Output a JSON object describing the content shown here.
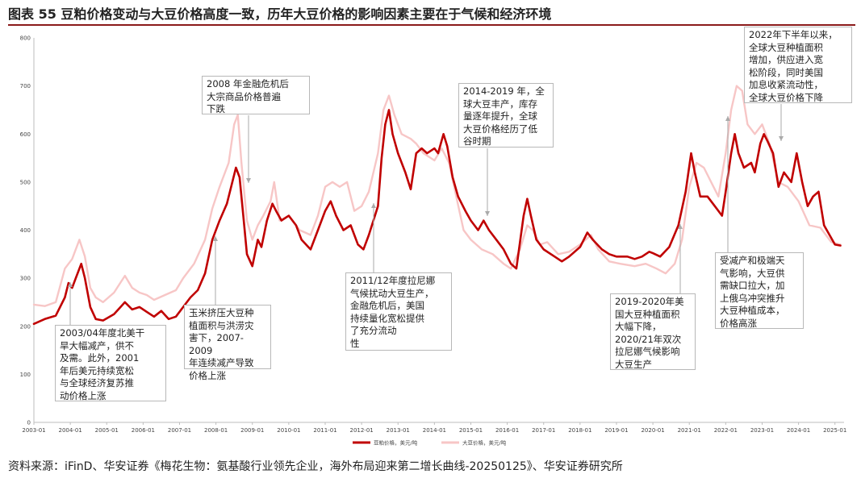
{
  "title": "图表 55 豆粕价格变动与大豆价格高度一致，历年大豆价格的影响因素主要在于气候和经济环境",
  "source": "资料来源：iFinD、华安证券《梅花生物：氨基酸行业领先企业，海外布局迎来第二增长曲线-20250125》、华安证券研究所",
  "colors": {
    "soymeal": "#c00000",
    "soybean": "#f7c6c6",
    "rule": "#8b1a1a",
    "arrow": "#aaaaaa"
  },
  "annotations": [
    {
      "id": "2003",
      "text": "2003/04年度北美干\n旱大幅减产，供不\n及需。此外，2001\n年后美元持续宽松\n与全球经济复苏推\n动价格上涨"
    },
    {
      "id": "2007",
      "text": "玉米挤压大豆种\n植面积与洪涝灾\n害下，2007-2009\n年连续减产导致\n价格上涨"
    },
    {
      "id": "2008",
      "text": "2008 年金融危机后\n大宗商品价格普遍\n下跌"
    },
    {
      "id": "2011",
      "text": "2011/12年度拉尼娜\n气候扰动大豆生产，\n金融危机后，美国\n持续量化宽松提供\n了充分流动\n性"
    },
    {
      "id": "2014",
      "text": "2014-2019 年，全\n球大豆丰产，库存\n量逐年提升，全球\n大豆价格经历了低\n谷时期"
    },
    {
      "id": "2019",
      "text": "2019-2020年美\n国大豆种植面积\n大幅下降，\n2020/21年双次\n拉尼娜气候影响\n大豆生产"
    },
    {
      "id": "2021",
      "text": "受减产和极端天\n气影响，大豆供\n需缺口拉大，加\n上俄乌冲突推升\n大豆种植成本，\n价格高涨"
    },
    {
      "id": "2022",
      "text": "2022年下半年以来，\n全球大豆种植面积\n增加，供应进入宽\n松阶段，同时美国\n加息收紧流动性，\n全球大豆价格下降"
    }
  ],
  "chart_data": {
    "type": "line",
    "x_unit": "year",
    "ylim": [
      0,
      800
    ],
    "yticks": [
      0,
      100,
      200,
      300,
      400,
      500,
      600,
      700,
      800
    ],
    "xlim": [
      2003.0,
      2025.25
    ],
    "xticks": [
      "2003-01",
      "2004-01",
      "2005-01",
      "2006-01",
      "2007-01",
      "2008-01",
      "2009-01",
      "2010-01",
      "2011-01",
      "2012-01",
      "2013-01",
      "2014-01",
      "2015-01",
      "2016-01",
      "2017-01",
      "2018-01",
      "2019-01",
      "2020-01",
      "2021-01",
      "2022-01",
      "2023-01",
      "2024-01",
      "2025-01"
    ],
    "legend_position": "bottom",
    "series": [
      {
        "name": "豆粕价格，美元/吨",
        "color": "#c00000",
        "points": [
          [
            2003.0,
            205
          ],
          [
            2003.3,
            215
          ],
          [
            2003.6,
            222
          ],
          [
            2003.85,
            260
          ],
          [
            2003.95,
            290
          ],
          [
            2004.05,
            280
          ],
          [
            2004.15,
            300
          ],
          [
            2004.3,
            330
          ],
          [
            2004.4,
            300
          ],
          [
            2004.55,
            240
          ],
          [
            2004.7,
            215
          ],
          [
            2004.9,
            212
          ],
          [
            2005.2,
            225
          ],
          [
            2005.5,
            250
          ],
          [
            2005.7,
            235
          ],
          [
            2005.9,
            240
          ],
          [
            2006.1,
            230
          ],
          [
            2006.3,
            220
          ],
          [
            2006.5,
            232
          ],
          [
            2006.7,
            215
          ],
          [
            2006.9,
            220
          ],
          [
            2007.1,
            240
          ],
          [
            2007.3,
            260
          ],
          [
            2007.5,
            275
          ],
          [
            2007.7,
            310
          ],
          [
            2007.9,
            380
          ],
          [
            2008.1,
            420
          ],
          [
            2008.3,
            455
          ],
          [
            2008.45,
            500
          ],
          [
            2008.55,
            530
          ],
          [
            2008.65,
            510
          ],
          [
            2008.75,
            430
          ],
          [
            2008.85,
            350
          ],
          [
            2009.0,
            325
          ],
          [
            2009.15,
            380
          ],
          [
            2009.25,
            365
          ],
          [
            2009.4,
            420
          ],
          [
            2009.55,
            455
          ],
          [
            2009.65,
            440
          ],
          [
            2009.8,
            420
          ],
          [
            2010.0,
            430
          ],
          [
            2010.2,
            410
          ],
          [
            2010.35,
            380
          ],
          [
            2010.6,
            360
          ],
          [
            2010.8,
            400
          ],
          [
            2011.0,
            440
          ],
          [
            2011.15,
            460
          ],
          [
            2011.3,
            430
          ],
          [
            2011.5,
            400
          ],
          [
            2011.7,
            410
          ],
          [
            2011.9,
            370
          ],
          [
            2012.05,
            360
          ],
          [
            2012.2,
            390
          ],
          [
            2012.45,
            450
          ],
          [
            2012.55,
            550
          ],
          [
            2012.65,
            620
          ],
          [
            2012.75,
            650
          ],
          [
            2012.85,
            600
          ],
          [
            2013.0,
            560
          ],
          [
            2013.2,
            520
          ],
          [
            2013.35,
            485
          ],
          [
            2013.5,
            560
          ],
          [
            2013.65,
            570
          ],
          [
            2013.8,
            560
          ],
          [
            2014.0,
            570
          ],
          [
            2014.1,
            560
          ],
          [
            2014.25,
            600
          ],
          [
            2014.35,
            575
          ],
          [
            2014.5,
            510
          ],
          [
            2014.65,
            470
          ],
          [
            2014.85,
            440
          ],
          [
            2015.0,
            420
          ],
          [
            2015.2,
            400
          ],
          [
            2015.35,
            420
          ],
          [
            2015.5,
            400
          ],
          [
            2015.7,
            380
          ],
          [
            2015.9,
            360
          ],
          [
            2016.1,
            330
          ],
          [
            2016.25,
            320
          ],
          [
            2016.45,
            430
          ],
          [
            2016.55,
            465
          ],
          [
            2016.65,
            430
          ],
          [
            2016.8,
            380
          ],
          [
            2017.0,
            360
          ],
          [
            2017.3,
            345
          ],
          [
            2017.5,
            335
          ],
          [
            2017.7,
            345
          ],
          [
            2018.0,
            365
          ],
          [
            2018.2,
            395
          ],
          [
            2018.35,
            380
          ],
          [
            2018.6,
            360
          ],
          [
            2018.8,
            350
          ],
          [
            2019.0,
            345
          ],
          [
            2019.3,
            345
          ],
          [
            2019.5,
            340
          ],
          [
            2019.7,
            345
          ],
          [
            2019.9,
            355
          ],
          [
            2020.0,
            352
          ],
          [
            2020.2,
            345
          ],
          [
            2020.45,
            365
          ],
          [
            2020.7,
            410
          ],
          [
            2020.9,
            480
          ],
          [
            2021.05,
            560
          ],
          [
            2021.15,
            520
          ],
          [
            2021.3,
            470
          ],
          [
            2021.5,
            470
          ],
          [
            2021.7,
            450
          ],
          [
            2021.9,
            430
          ],
          [
            2022.0,
            480
          ],
          [
            2022.15,
            560
          ],
          [
            2022.25,
            600
          ],
          [
            2022.35,
            560
          ],
          [
            2022.5,
            530
          ],
          [
            2022.7,
            540
          ],
          [
            2022.8,
            520
          ],
          [
            2022.95,
            580
          ],
          [
            2023.05,
            600
          ],
          [
            2023.15,
            585
          ],
          [
            2023.3,
            560
          ],
          [
            2023.45,
            490
          ],
          [
            2023.6,
            520
          ],
          [
            2023.8,
            500
          ],
          [
            2023.95,
            560
          ],
          [
            2024.1,
            500
          ],
          [
            2024.25,
            450
          ],
          [
            2024.4,
            470
          ],
          [
            2024.55,
            480
          ],
          [
            2024.7,
            410
          ],
          [
            2024.85,
            390
          ],
          [
            2025.0,
            370
          ],
          [
            2025.15,
            368
          ]
        ]
      },
      {
        "name": "大豆价格，美元/吨",
        "color": "#f7c6c6",
        "points": [
          [
            2003.0,
            245
          ],
          [
            2003.3,
            242
          ],
          [
            2003.6,
            250
          ],
          [
            2003.85,
            320
          ],
          [
            2004.05,
            340
          ],
          [
            2004.25,
            380
          ],
          [
            2004.4,
            345
          ],
          [
            2004.55,
            280
          ],
          [
            2004.7,
            260
          ],
          [
            2004.9,
            250
          ],
          [
            2005.2,
            270
          ],
          [
            2005.5,
            305
          ],
          [
            2005.7,
            280
          ],
          [
            2005.9,
            270
          ],
          [
            2006.1,
            265
          ],
          [
            2006.3,
            255
          ],
          [
            2006.6,
            265
          ],
          [
            2006.9,
            275
          ],
          [
            2007.1,
            300
          ],
          [
            2007.4,
            330
          ],
          [
            2007.7,
            380
          ],
          [
            2007.9,
            445
          ],
          [
            2008.1,
            490
          ],
          [
            2008.35,
            540
          ],
          [
            2008.5,
            620
          ],
          [
            2008.6,
            640
          ],
          [
            2008.7,
            540
          ],
          [
            2008.85,
            420
          ],
          [
            2009.0,
            380
          ],
          [
            2009.15,
            410
          ],
          [
            2009.3,
            430
          ],
          [
            2009.5,
            460
          ],
          [
            2009.6,
            500
          ],
          [
            2009.75,
            420
          ],
          [
            2010.0,
            430
          ],
          [
            2010.3,
            400
          ],
          [
            2010.6,
            390
          ],
          [
            2010.8,
            430
          ],
          [
            2011.0,
            490
          ],
          [
            2011.2,
            500
          ],
          [
            2011.4,
            490
          ],
          [
            2011.6,
            500
          ],
          [
            2011.8,
            440
          ],
          [
            2012.0,
            450
          ],
          [
            2012.2,
            480
          ],
          [
            2012.45,
            560
          ],
          [
            2012.6,
            650
          ],
          [
            2012.75,
            680
          ],
          [
            2012.9,
            640
          ],
          [
            2013.1,
            600
          ],
          [
            2013.35,
            590
          ],
          [
            2013.5,
            580
          ],
          [
            2013.7,
            560
          ],
          [
            2014.0,
            545
          ],
          [
            2014.2,
            570
          ],
          [
            2014.4,
            540
          ],
          [
            2014.6,
            470
          ],
          [
            2014.8,
            400
          ],
          [
            2015.0,
            380
          ],
          [
            2015.3,
            360
          ],
          [
            2015.6,
            350
          ],
          [
            2015.9,
            330
          ],
          [
            2016.1,
            320
          ],
          [
            2016.35,
            360
          ],
          [
            2016.55,
            410
          ],
          [
            2016.7,
            400
          ],
          [
            2016.9,
            370
          ],
          [
            2017.1,
            375
          ],
          [
            2017.4,
            350
          ],
          [
            2017.7,
            355
          ],
          [
            2018.0,
            370
          ],
          [
            2018.3,
            390
          ],
          [
            2018.5,
            360
          ],
          [
            2018.8,
            335
          ],
          [
            2019.1,
            330
          ],
          [
            2019.5,
            325
          ],
          [
            2019.8,
            330
          ],
          [
            2020.1,
            320
          ],
          [
            2020.35,
            310
          ],
          [
            2020.6,
            330
          ],
          [
            2020.8,
            380
          ],
          [
            2021.0,
            490
          ],
          [
            2021.2,
            540
          ],
          [
            2021.4,
            530
          ],
          [
            2021.6,
            500
          ],
          [
            2021.8,
            470
          ],
          [
            2022.0,
            560
          ],
          [
            2022.15,
            650
          ],
          [
            2022.3,
            700
          ],
          [
            2022.45,
            690
          ],
          [
            2022.6,
            620
          ],
          [
            2022.8,
            600
          ],
          [
            2023.0,
            620
          ],
          [
            2023.2,
            580
          ],
          [
            2023.45,
            500
          ],
          [
            2023.7,
            490
          ],
          [
            2024.0,
            460
          ],
          [
            2024.3,
            410
          ],
          [
            2024.6,
            405
          ],
          [
            2024.9,
            375
          ],
          [
            2025.15,
            370
          ]
        ]
      }
    ]
  }
}
